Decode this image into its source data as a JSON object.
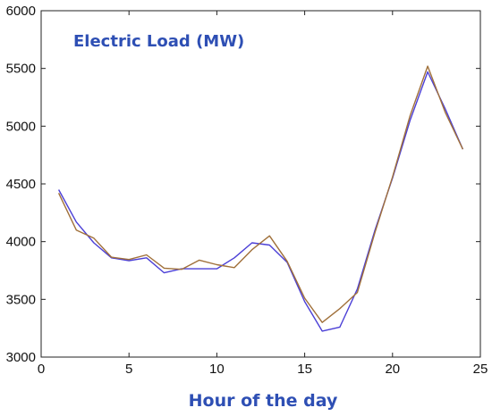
{
  "chart_data": {
    "type": "line",
    "title": "Electric Load (MW)",
    "xlabel": "Hour of the day",
    "ylabel": "",
    "xlim": [
      0,
      25
    ],
    "ylim": [
      3000,
      6000
    ],
    "xticks": [
      0,
      5,
      10,
      15,
      20,
      25
    ],
    "yticks": [
      3000,
      3500,
      4000,
      4500,
      5000,
      5500,
      6000
    ],
    "grid": false,
    "legend": "none",
    "x": [
      1,
      2,
      3,
      4,
      5,
      6,
      7,
      8,
      9,
      10,
      11,
      12,
      13,
      14,
      15,
      16,
      17,
      18,
      19,
      20,
      21,
      22,
      23,
      24
    ],
    "series": [
      {
        "color": "#4b3fd6",
        "values": [
          4450,
          4170,
          3990,
          3860,
          3835,
          3860,
          3730,
          3765,
          3765,
          3765,
          3860,
          3990,
          3970,
          3820,
          3480,
          3225,
          3260,
          3590,
          4100,
          4550,
          5050,
          5470,
          5150,
          4800
        ]
      },
      {
        "color": "#a0703a",
        "values": [
          4420,
          4100,
          4030,
          3865,
          3845,
          3885,
          3770,
          3760,
          3840,
          3800,
          3775,
          3930,
          4050,
          3830,
          3510,
          3300,
          3420,
          3560,
          4080,
          4560,
          5090,
          5520,
          5120,
          4800
        ]
      }
    ]
  }
}
